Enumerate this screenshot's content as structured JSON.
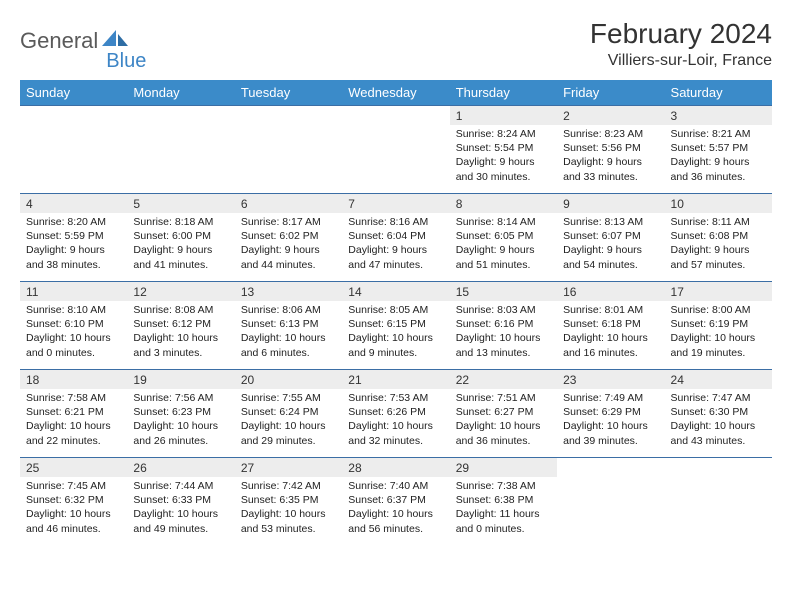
{
  "brand": {
    "part1": "General",
    "part2": "Blue"
  },
  "title": "February 2024",
  "location": "Villiers-sur-Loir, France",
  "colors": {
    "header_bg": "#3b8bc9",
    "header_text": "#ffffff",
    "border": "#3b6ea5",
    "daynum_bg": "#ededed",
    "logo_gray": "#5a5a5a",
    "logo_blue": "#3d85c6"
  },
  "weekdays": [
    "Sunday",
    "Monday",
    "Tuesday",
    "Wednesday",
    "Thursday",
    "Friday",
    "Saturday"
  ],
  "weeks": [
    [
      null,
      null,
      null,
      null,
      {
        "num": "1",
        "sunrise": "Sunrise: 8:24 AM",
        "sunset": "Sunset: 5:54 PM",
        "day1": "Daylight: 9 hours",
        "day2": "and 30 minutes."
      },
      {
        "num": "2",
        "sunrise": "Sunrise: 8:23 AM",
        "sunset": "Sunset: 5:56 PM",
        "day1": "Daylight: 9 hours",
        "day2": "and 33 minutes."
      },
      {
        "num": "3",
        "sunrise": "Sunrise: 8:21 AM",
        "sunset": "Sunset: 5:57 PM",
        "day1": "Daylight: 9 hours",
        "day2": "and 36 minutes."
      }
    ],
    [
      {
        "num": "4",
        "sunrise": "Sunrise: 8:20 AM",
        "sunset": "Sunset: 5:59 PM",
        "day1": "Daylight: 9 hours",
        "day2": "and 38 minutes."
      },
      {
        "num": "5",
        "sunrise": "Sunrise: 8:18 AM",
        "sunset": "Sunset: 6:00 PM",
        "day1": "Daylight: 9 hours",
        "day2": "and 41 minutes."
      },
      {
        "num": "6",
        "sunrise": "Sunrise: 8:17 AM",
        "sunset": "Sunset: 6:02 PM",
        "day1": "Daylight: 9 hours",
        "day2": "and 44 minutes."
      },
      {
        "num": "7",
        "sunrise": "Sunrise: 8:16 AM",
        "sunset": "Sunset: 6:04 PM",
        "day1": "Daylight: 9 hours",
        "day2": "and 47 minutes."
      },
      {
        "num": "8",
        "sunrise": "Sunrise: 8:14 AM",
        "sunset": "Sunset: 6:05 PM",
        "day1": "Daylight: 9 hours",
        "day2": "and 51 minutes."
      },
      {
        "num": "9",
        "sunrise": "Sunrise: 8:13 AM",
        "sunset": "Sunset: 6:07 PM",
        "day1": "Daylight: 9 hours",
        "day2": "and 54 minutes."
      },
      {
        "num": "10",
        "sunrise": "Sunrise: 8:11 AM",
        "sunset": "Sunset: 6:08 PM",
        "day1": "Daylight: 9 hours",
        "day2": "and 57 minutes."
      }
    ],
    [
      {
        "num": "11",
        "sunrise": "Sunrise: 8:10 AM",
        "sunset": "Sunset: 6:10 PM",
        "day1": "Daylight: 10 hours",
        "day2": "and 0 minutes."
      },
      {
        "num": "12",
        "sunrise": "Sunrise: 8:08 AM",
        "sunset": "Sunset: 6:12 PM",
        "day1": "Daylight: 10 hours",
        "day2": "and 3 minutes."
      },
      {
        "num": "13",
        "sunrise": "Sunrise: 8:06 AM",
        "sunset": "Sunset: 6:13 PM",
        "day1": "Daylight: 10 hours",
        "day2": "and 6 minutes."
      },
      {
        "num": "14",
        "sunrise": "Sunrise: 8:05 AM",
        "sunset": "Sunset: 6:15 PM",
        "day1": "Daylight: 10 hours",
        "day2": "and 9 minutes."
      },
      {
        "num": "15",
        "sunrise": "Sunrise: 8:03 AM",
        "sunset": "Sunset: 6:16 PM",
        "day1": "Daylight: 10 hours",
        "day2": "and 13 minutes."
      },
      {
        "num": "16",
        "sunrise": "Sunrise: 8:01 AM",
        "sunset": "Sunset: 6:18 PM",
        "day1": "Daylight: 10 hours",
        "day2": "and 16 minutes."
      },
      {
        "num": "17",
        "sunrise": "Sunrise: 8:00 AM",
        "sunset": "Sunset: 6:19 PM",
        "day1": "Daylight: 10 hours",
        "day2": "and 19 minutes."
      }
    ],
    [
      {
        "num": "18",
        "sunrise": "Sunrise: 7:58 AM",
        "sunset": "Sunset: 6:21 PM",
        "day1": "Daylight: 10 hours",
        "day2": "and 22 minutes."
      },
      {
        "num": "19",
        "sunrise": "Sunrise: 7:56 AM",
        "sunset": "Sunset: 6:23 PM",
        "day1": "Daylight: 10 hours",
        "day2": "and 26 minutes."
      },
      {
        "num": "20",
        "sunrise": "Sunrise: 7:55 AM",
        "sunset": "Sunset: 6:24 PM",
        "day1": "Daylight: 10 hours",
        "day2": "and 29 minutes."
      },
      {
        "num": "21",
        "sunrise": "Sunrise: 7:53 AM",
        "sunset": "Sunset: 6:26 PM",
        "day1": "Daylight: 10 hours",
        "day2": "and 32 minutes."
      },
      {
        "num": "22",
        "sunrise": "Sunrise: 7:51 AM",
        "sunset": "Sunset: 6:27 PM",
        "day1": "Daylight: 10 hours",
        "day2": "and 36 minutes."
      },
      {
        "num": "23",
        "sunrise": "Sunrise: 7:49 AM",
        "sunset": "Sunset: 6:29 PM",
        "day1": "Daylight: 10 hours",
        "day2": "and 39 minutes."
      },
      {
        "num": "24",
        "sunrise": "Sunrise: 7:47 AM",
        "sunset": "Sunset: 6:30 PM",
        "day1": "Daylight: 10 hours",
        "day2": "and 43 minutes."
      }
    ],
    [
      {
        "num": "25",
        "sunrise": "Sunrise: 7:45 AM",
        "sunset": "Sunset: 6:32 PM",
        "day1": "Daylight: 10 hours",
        "day2": "and 46 minutes."
      },
      {
        "num": "26",
        "sunrise": "Sunrise: 7:44 AM",
        "sunset": "Sunset: 6:33 PM",
        "day1": "Daylight: 10 hours",
        "day2": "and 49 minutes."
      },
      {
        "num": "27",
        "sunrise": "Sunrise: 7:42 AM",
        "sunset": "Sunset: 6:35 PM",
        "day1": "Daylight: 10 hours",
        "day2": "and 53 minutes."
      },
      {
        "num": "28",
        "sunrise": "Sunrise: 7:40 AM",
        "sunset": "Sunset: 6:37 PM",
        "day1": "Daylight: 10 hours",
        "day2": "and 56 minutes."
      },
      {
        "num": "29",
        "sunrise": "Sunrise: 7:38 AM",
        "sunset": "Sunset: 6:38 PM",
        "day1": "Daylight: 11 hours",
        "day2": "and 0 minutes."
      },
      null,
      null
    ]
  ]
}
